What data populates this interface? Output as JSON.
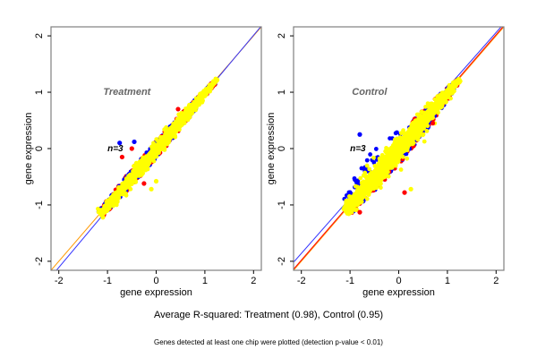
{
  "chart_data": {
    "type": "scatter",
    "caption": "Average R-squared: Treatment (0.98), Control (0.95)",
    "subcaption": "Genes detected at least one chip were plotted (detection p-value < 0.01)",
    "colors": {
      "yellow": "#ffff00",
      "red": "#ff0000",
      "blue": "#0000ff",
      "identity_line": "#ff9900",
      "fit_line": "#3333ff",
      "fit_line_red": "#ff0000",
      "frame": "#808080",
      "title_gray": "#666666"
    },
    "panels": [
      {
        "title": "Treatment",
        "n_label": "n=3",
        "xlabel": "gene expression",
        "ylabel": "gene expression",
        "xlim": [
          -2.16,
          2.16
        ],
        "ylim": [
          -2.16,
          2.16
        ],
        "xticks": [
          -2,
          -1,
          0,
          1,
          2
        ],
        "yticks": [
          -2,
          -1,
          0,
          1,
          2
        ],
        "r_squared": 0.98,
        "lines": [
          {
            "name": "identity",
            "color": "orange",
            "intercept": 0.0,
            "slope": 1.0
          },
          {
            "name": "regression",
            "color": "blue",
            "intercept": -0.05,
            "slope": 1.03
          }
        ],
        "cloud": {
          "x_range": [
            -1.15,
            1.25
          ],
          "center": [
            -0.3,
            -0.3
          ],
          "spread_along": 0.55,
          "spread_across": 0.12,
          "upper_blue_extent": 0.0
        },
        "outliers": [
          {
            "color": "blue",
            "x": -0.75,
            "y": 0.1
          },
          {
            "color": "blue",
            "x": -0.45,
            "y": 0.12
          },
          {
            "color": "red",
            "x": -0.7,
            "y": -0.15
          },
          {
            "color": "red",
            "x": -0.5,
            "y": 0.0
          },
          {
            "color": "red",
            "x": 0.45,
            "y": 0.7
          },
          {
            "color": "red",
            "x": -0.25,
            "y": -0.62
          },
          {
            "color": "yellow",
            "x": -0.1,
            "y": -0.72
          },
          {
            "color": "yellow",
            "x": 0.0,
            "y": -0.58
          }
        ]
      },
      {
        "title": "Control",
        "n_label": "n=3",
        "xlabel": "gene expression",
        "ylabel": "gene expression",
        "xlim": [
          -2.16,
          2.16
        ],
        "ylim": [
          -2.16,
          2.16
        ],
        "xticks": [
          -2,
          -1,
          0,
          1,
          2
        ],
        "yticks": [
          -2,
          -1,
          0,
          1,
          2
        ],
        "r_squared": 0.95,
        "lines": [
          {
            "name": "identity",
            "color": "orange",
            "intercept": 0.0,
            "slope": 1.0
          },
          {
            "name": "fit-red",
            "color": "red",
            "intercept": 0.02,
            "slope": 1.0
          },
          {
            "name": "regression",
            "color": "blue",
            "intercept": 0.1,
            "slope": 0.98
          }
        ],
        "cloud": {
          "x_range": [
            -1.1,
            1.25
          ],
          "center": [
            -0.3,
            -0.35
          ],
          "spread_along": 0.55,
          "spread_across": 0.2,
          "upper_blue_extent": 0.35
        },
        "outliers": [
          {
            "color": "blue",
            "x": -0.8,
            "y": 0.25
          },
          {
            "color": "red",
            "x": 0.7,
            "y": 0.45
          },
          {
            "color": "red",
            "x": 0.12,
            "y": -0.78
          },
          {
            "color": "red",
            "x": -0.8,
            "y": -1.13
          },
          {
            "color": "yellow",
            "x": 0.25,
            "y": -0.72
          }
        ]
      }
    ]
  }
}
